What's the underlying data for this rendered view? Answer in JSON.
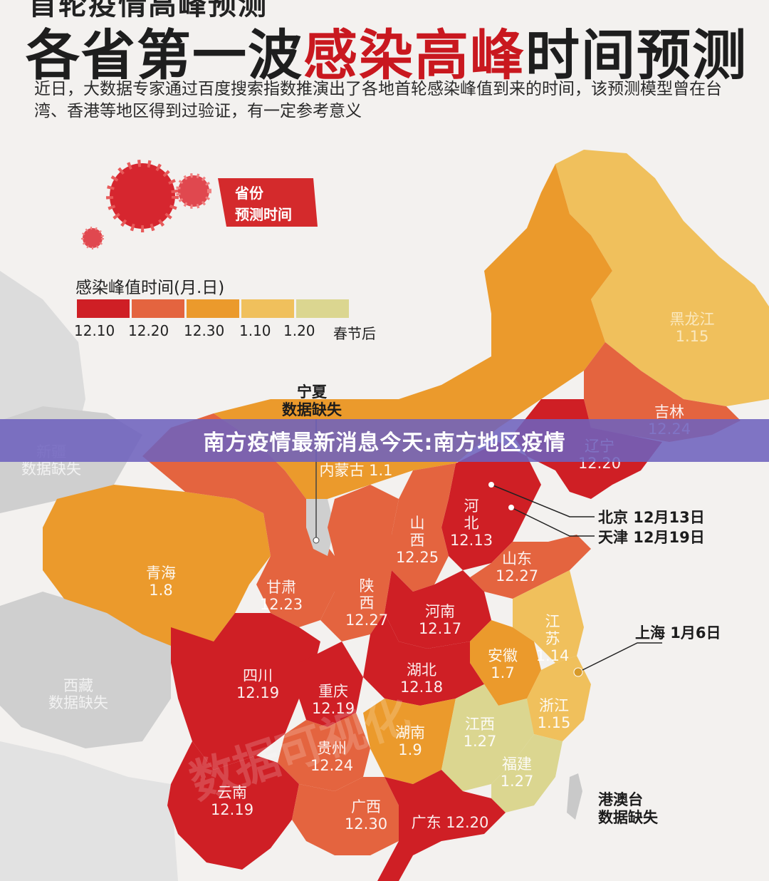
{
  "header": {
    "cut_title": "首轮疫情高峰预测",
    "headline_part1": "各省第一波",
    "headline_part2": "感染高峰",
    "headline_part3": "时间预测",
    "intro": "近日，大数据专家通过百度搜索指数推演出了各地首轮感染峰值到来的时间，该预测模型曾在台湾、香港等地区得到过验证，有一定参考意义"
  },
  "tag": {
    "line1": "省份",
    "line2": "预测时间"
  },
  "legend": {
    "title": "感染峰值时间(月.日)",
    "items": [
      {
        "label": "12.10",
        "color": "#cf1f25"
      },
      {
        "label": "12.20",
        "color": "#e4643f"
      },
      {
        "label": "12.30",
        "color": "#eb9a2c"
      },
      {
        "label": "1.10",
        "color": "#f0c05c"
      },
      {
        "label": "1.20",
        "color": "#dbd690"
      },
      {
        "label": "春节后",
        "color": ""
      }
    ]
  },
  "provinces": [
    {
      "name": "黑龙江 1.15",
      "color": "#f0c05c"
    },
    {
      "name": "吉林\n12.24",
      "color": "#e4643f"
    },
    {
      "name": "辽宁\n12.20",
      "color": "#cf1f25"
    },
    {
      "name": "内蒙古 1.1",
      "color": "#eb9a2c"
    },
    {
      "name": "河\n北\n12.13",
      "color": "#cf1f25"
    },
    {
      "name": "山\n西\n12.25",
      "color": "#e4643f"
    },
    {
      "name": "山东\n12.27",
      "color": "#e4643f"
    },
    {
      "name": "青海\n1.8",
      "color": "#eb9a2c"
    },
    {
      "name": "甘肃\n12.23",
      "color": "#e4643f"
    },
    {
      "name": "陕\n西\n12.27",
      "color": "#e4643f"
    },
    {
      "name": "河南\n12.17",
      "color": "#cf1f25"
    },
    {
      "name": "江\n苏\n1.14",
      "color": "#f0c05c"
    },
    {
      "name": "安徽\n1.7",
      "color": "#eb9a2c"
    },
    {
      "name": "湖北\n12.18",
      "color": "#cf1f25"
    },
    {
      "name": "四川\n12.19",
      "color": "#cf1f25"
    },
    {
      "name": "重庆\n12.19",
      "color": "#cf1f25"
    },
    {
      "name": "浙江\n1.15",
      "color": "#f0c05c"
    },
    {
      "name": "湖南\n1.9",
      "color": "#eb9a2c"
    },
    {
      "name": "江西\n1.27",
      "color": "#dbd690"
    },
    {
      "name": "贵州\n12.24",
      "color": "#e4643f"
    },
    {
      "name": "福建\n1.27",
      "color": "#dbd690"
    },
    {
      "name": "云南\n12.19",
      "color": "#cf1f25"
    },
    {
      "name": "广西\n12.30",
      "color": "#e4643f"
    },
    {
      "name": "广东 12.20",
      "color": "#cf1f25"
    },
    {
      "name": "新疆\n数据缺失",
      "color": "#cfcfcf"
    },
    {
      "name": "西藏\n数据缺失",
      "color": "#cfcfcf"
    }
  ],
  "callouts": {
    "ningxia": "宁夏\n数据缺失",
    "beijing": "北京 12月13日",
    "tianjin": "天津 12月19日",
    "shanghai": "上海 1月6日",
    "hmt": "港澳台\n数据缺失"
  },
  "banner": {
    "text": "南方疫情最新消息今天:南方地区疫情"
  },
  "watermark": "数据可视化"
}
